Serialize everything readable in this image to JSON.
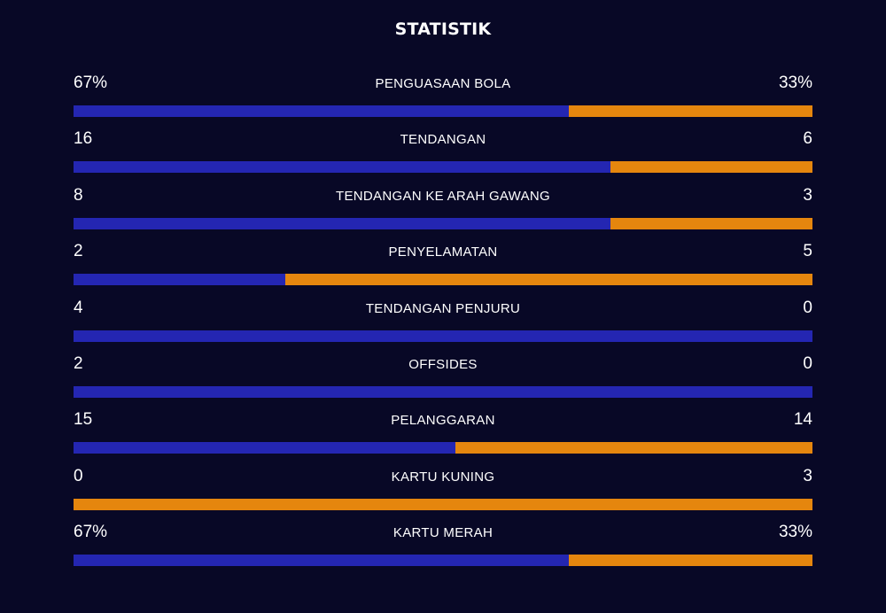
{
  "title": "STATISTIK",
  "colors": {
    "home": "#2426b2",
    "away": "#e5860e",
    "background": "#080826"
  },
  "stats": [
    {
      "label": "PENGUASAAN BOLA",
      "home": "67%",
      "away": "33%",
      "home_share": 0.67
    },
    {
      "label": "TENDANGAN",
      "home": "16",
      "away": "6",
      "home_share": 0.727
    },
    {
      "label": "TENDANGAN KE ARAH GAWANG",
      "home": "8",
      "away": "3",
      "home_share": 0.727
    },
    {
      "label": "PENYELAMATAN",
      "home": "2",
      "away": "5",
      "home_share": 0.286
    },
    {
      "label": "TENDANGAN PENJURU",
      "home": "4",
      "away": "0",
      "home_share": 1.0
    },
    {
      "label": "OFFSIDES",
      "home": "2",
      "away": "0",
      "home_share": 1.0
    },
    {
      "label": "PELANGGARAN",
      "home": "15",
      "away": "14",
      "home_share": 0.517
    },
    {
      "label": "KARTU KUNING",
      "home": "0",
      "away": "3",
      "home_share": 0.0
    },
    {
      "label": "KARTU MERAH",
      "home": "67%",
      "away": "33%",
      "home_share": 0.67
    }
  ]
}
